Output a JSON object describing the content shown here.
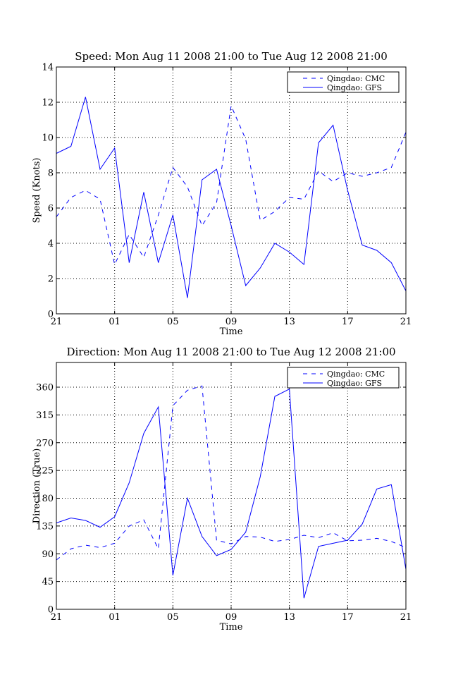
{
  "chart_data": [
    {
      "type": "line",
      "title": "Speed: Mon Aug 11 2008 21:00 to Tue Aug 12 2008 21:00",
      "xlabel": "Time",
      "ylabel": "Speed (Knots)",
      "xlim": [
        0,
        24
      ],
      "ylim": [
        0,
        14
      ],
      "grid": true,
      "legend_position": "top-right",
      "x_ticks": [
        {
          "value": 0,
          "label": "21"
        },
        {
          "value": 4,
          "label": "01"
        },
        {
          "value": 8,
          "label": "05"
        },
        {
          "value": 12,
          "label": "09"
        },
        {
          "value": 16,
          "label": "13"
        },
        {
          "value": 20,
          "label": "17"
        },
        {
          "value": 24,
          "label": "21"
        }
      ],
      "y_ticks": [
        {
          "value": 0,
          "label": "0"
        },
        {
          "value": 2,
          "label": "2"
        },
        {
          "value": 4,
          "label": "4"
        },
        {
          "value": 6,
          "label": "6"
        },
        {
          "value": 8,
          "label": "8"
        },
        {
          "value": 10,
          "label": "10"
        },
        {
          "value": 12,
          "label": "12"
        },
        {
          "value": 14,
          "label": "14"
        }
      ],
      "series": [
        {
          "name": "Qingdao: CMC",
          "style": "dashed",
          "color": "#0000ff",
          "x": [
            0,
            1,
            2,
            3,
            4,
            5,
            6,
            7,
            8,
            9,
            10,
            11,
            12,
            13,
            14,
            15,
            16,
            17,
            18,
            19,
            20,
            21,
            22,
            23,
            24
          ],
          "values": [
            5.5,
            6.6,
            7.0,
            6.5,
            2.8,
            4.5,
            3.2,
            5.6,
            8.3,
            7.2,
            5.0,
            6.3,
            11.8,
            9.9,
            5.3,
            5.8,
            6.6,
            6.5,
            8.1,
            7.5,
            8.0,
            7.8,
            8.0,
            8.3,
            10.3
          ]
        },
        {
          "name": "Qingdao: GFS",
          "style": "solid",
          "color": "#0000ff",
          "x": [
            0,
            1,
            2,
            3,
            4,
            5,
            6,
            7,
            8,
            9,
            10,
            11,
            12,
            13,
            14,
            15,
            16,
            17,
            18,
            19,
            20,
            21,
            22,
            23,
            24
          ],
          "values": [
            9.1,
            9.5,
            12.3,
            8.2,
            9.4,
            2.9,
            6.9,
            2.9,
            5.6,
            0.9,
            7.6,
            8.2,
            5.0,
            1.6,
            2.6,
            4.0,
            3.5,
            2.8,
            9.7,
            10.7,
            7.0,
            3.9,
            3.6,
            2.9,
            1.3
          ]
        }
      ]
    },
    {
      "type": "line",
      "title": "Direction: Mon Aug 11 2008 21:00 to Tue Aug 12 2008 21:00",
      "xlabel": "Time",
      "ylabel": "Direction (True)",
      "xlim": [
        0,
        24
      ],
      "ylim": [
        0,
        400
      ],
      "grid": true,
      "legend_position": "top-right",
      "x_ticks": [
        {
          "value": 0,
          "label": "21"
        },
        {
          "value": 4,
          "label": "01"
        },
        {
          "value": 8,
          "label": "05"
        },
        {
          "value": 12,
          "label": "09"
        },
        {
          "value": 16,
          "label": "13"
        },
        {
          "value": 20,
          "label": "17"
        },
        {
          "value": 24,
          "label": "21"
        }
      ],
      "y_ticks": [
        {
          "value": 0,
          "label": "0"
        },
        {
          "value": 45,
          "label": "45"
        },
        {
          "value": 90,
          "label": "90"
        },
        {
          "value": 135,
          "label": "135"
        },
        {
          "value": 180,
          "label": "180"
        },
        {
          "value": 225,
          "label": "225"
        },
        {
          "value": 270,
          "label": "270"
        },
        {
          "value": 315,
          "label": "315"
        },
        {
          "value": 360,
          "label": "360"
        }
      ],
      "series": [
        {
          "name": "Qingdao: CMC",
          "style": "dashed",
          "color": "#0000ff",
          "x": [
            0,
            1,
            2,
            3,
            4,
            5,
            6,
            7,
            8,
            9,
            10,
            11,
            12,
            13,
            14,
            15,
            16,
            17,
            18,
            19,
            20,
            21,
            22,
            23,
            24
          ],
          "values": [
            80,
            98,
            104,
            100,
            107,
            135,
            145,
            98,
            330,
            355,
            362,
            112,
            106,
            118,
            117,
            110,
            113,
            120,
            116,
            124,
            111,
            112,
            115,
            110,
            100
          ]
        },
        {
          "name": "Qingdao: GFS",
          "style": "solid",
          "color": "#0000ff",
          "x": [
            0,
            1,
            2,
            3,
            4,
            5,
            6,
            7,
            8,
            9,
            10,
            11,
            12,
            13,
            14,
            15,
            16,
            17,
            18,
            19,
            20,
            21,
            22,
            23,
            24
          ],
          "values": [
            140,
            148,
            144,
            133,
            150,
            205,
            285,
            328,
            55,
            180,
            118,
            87,
            97,
            125,
            215,
            345,
            357,
            18,
            102,
            107,
            112,
            138,
            195,
            202,
            65
          ]
        }
      ]
    }
  ]
}
